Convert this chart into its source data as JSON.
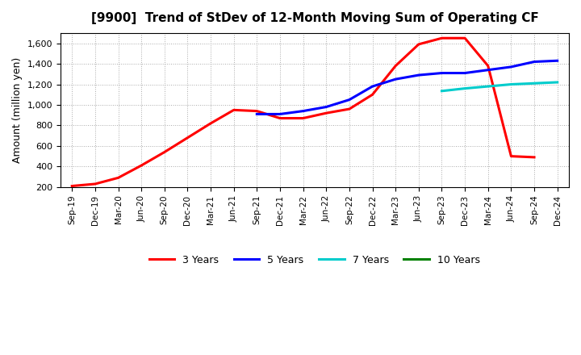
{
  "title": "[9900]  Trend of StDev of 12-Month Moving Sum of Operating CF",
  "ylabel": "Amount (million yen)",
  "x_labels": [
    "Sep-19",
    "Dec-19",
    "Mar-20",
    "Jun-20",
    "Sep-20",
    "Dec-20",
    "Mar-21",
    "Jun-21",
    "Sep-21",
    "Dec-21",
    "Mar-22",
    "Jun-22",
    "Sep-22",
    "Dec-22",
    "Mar-23",
    "Jun-23",
    "Sep-23",
    "Dec-23",
    "Mar-24",
    "Jun-24",
    "Sep-24",
    "Dec-24"
  ],
  "series_3yr": {
    "label": "3 Years",
    "color": "#ff0000",
    "data_x": [
      0,
      1,
      2,
      3,
      4,
      5,
      6,
      7,
      8,
      9,
      10,
      11,
      12,
      13,
      14,
      15,
      16,
      17,
      18,
      19,
      20
    ],
    "data_y": [
      210,
      230,
      290,
      410,
      540,
      680,
      820,
      950,
      940,
      870,
      870,
      920,
      960,
      1100,
      1380,
      1590,
      1650,
      1650,
      1380,
      500,
      490
    ]
  },
  "series_5yr": {
    "label": "5 Years",
    "color": "#0000ff",
    "data_x": [
      8,
      9,
      10,
      11,
      12,
      13,
      14,
      15,
      16,
      17,
      18,
      19,
      20,
      21
    ],
    "data_y": [
      910,
      910,
      940,
      980,
      1050,
      1180,
      1250,
      1290,
      1310,
      1310,
      1340,
      1370,
      1420,
      1430
    ]
  },
  "series_7yr": {
    "label": "7 Years",
    "color": "#00cccc",
    "data_x": [
      16,
      17,
      18,
      19,
      20,
      21
    ],
    "data_y": [
      1135,
      1160,
      1180,
      1200,
      1210,
      1220
    ]
  },
  "series_10yr": {
    "label": "10 Years",
    "color": "#008000",
    "data_x": [],
    "data_y": []
  },
  "ylim": [
    200,
    1700
  ],
  "yticks": [
    200,
    400,
    600,
    800,
    1000,
    1200,
    1400,
    1600
  ],
  "background_color": "#ffffff",
  "grid_color": "#aaaaaa"
}
